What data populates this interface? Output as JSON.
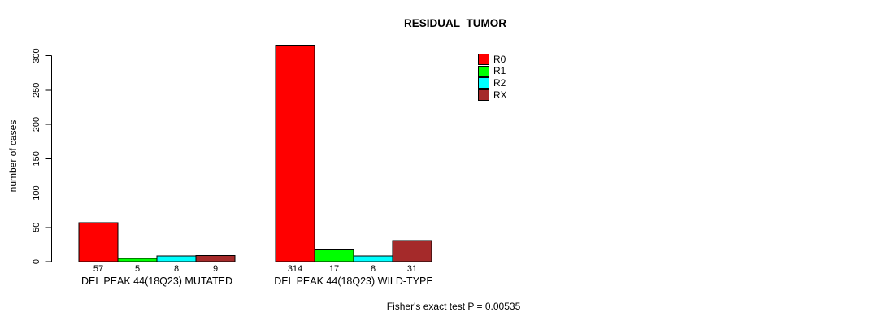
{
  "chart_data": {
    "type": "bar",
    "title": "RESIDUAL_TUMOR",
    "ylabel": "number of cases",
    "xlabel": "",
    "ylim": [
      0,
      300
    ],
    "yticks": [
      0,
      50,
      100,
      150,
      200,
      250,
      300
    ],
    "grid": false,
    "legend_position": "top-right-outside",
    "categories": [
      "DEL PEAK 44(18Q23) MUTATED",
      "DEL PEAK 44(18Q23) WILD-TYPE"
    ],
    "series": [
      {
        "name": "R0",
        "color": "#ff0000",
        "values": [
          57,
          314
        ]
      },
      {
        "name": "R1",
        "color": "#00ff00",
        "values": [
          5,
          17
        ]
      },
      {
        "name": "R2",
        "color": "#00ffff",
        "values": [
          8,
          8
        ]
      },
      {
        "name": "RX",
        "color": "#a52a2a",
        "values": [
          9,
          31
        ]
      }
    ],
    "value_labels_shown": true,
    "footnote": "Fisher's exact test P = 0.00535",
    "axis_color": "#000000",
    "bar_border_color": "#000000"
  }
}
